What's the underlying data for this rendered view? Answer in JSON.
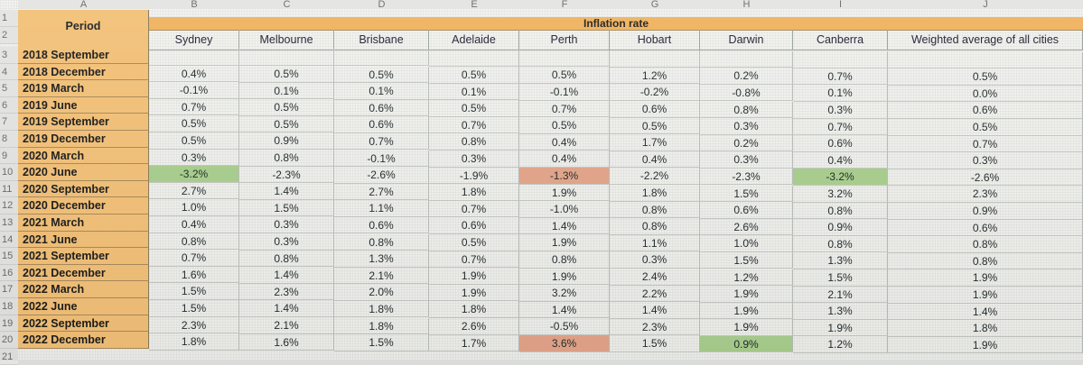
{
  "columns": [
    "A",
    "B",
    "C",
    "D",
    "E",
    "F",
    "G",
    "H",
    "I",
    "J"
  ],
  "row_numbers": [
    "1",
    "2",
    "3",
    "4",
    "5",
    "6",
    "7",
    "8",
    "9",
    "10",
    "11",
    "12",
    "13",
    "14",
    "15",
    "16",
    "17",
    "18",
    "19",
    "20",
    "21"
  ],
  "header": {
    "period": "Period",
    "inflation_rate": "Inflation rate",
    "cities": [
      "Sydney",
      "Melbourne",
      "Brisbane",
      "Adelaide",
      "Perth",
      "Hobart",
      "Darwin",
      "Canberra",
      "Weighted average of all cities"
    ]
  },
  "rows": [
    {
      "period": "2018 September",
      "values": [
        "",
        "",
        "",
        "",
        "",
        "",
        "",
        "",
        ""
      ]
    },
    {
      "period": "2018 December",
      "values": [
        "0.4%",
        "0.5%",
        "0.5%",
        "0.5%",
        "0.5%",
        "1.2%",
        "0.2%",
        "0.7%",
        "0.5%"
      ]
    },
    {
      "period": "2019 March",
      "values": [
        "-0.1%",
        "0.1%",
        "0.1%",
        "0.1%",
        "-0.1%",
        "-0.2%",
        "-0.8%",
        "0.1%",
        "0.0%"
      ]
    },
    {
      "period": "2019 June",
      "values": [
        "0.7%",
        "0.5%",
        "0.6%",
        "0.5%",
        "0.7%",
        "0.6%",
        "0.8%",
        "0.3%",
        "0.6%"
      ]
    },
    {
      "period": "2019 September",
      "values": [
        "0.5%",
        "0.5%",
        "0.6%",
        "0.7%",
        "0.5%",
        "0.5%",
        "0.3%",
        "0.7%",
        "0.5%"
      ]
    },
    {
      "period": "2019 December",
      "values": [
        "0.5%",
        "0.9%",
        "0.7%",
        "0.8%",
        "0.4%",
        "1.7%",
        "0.2%",
        "0.6%",
        "0.7%"
      ]
    },
    {
      "period": "2020 March",
      "values": [
        "0.3%",
        "0.8%",
        "-0.1%",
        "0.3%",
        "0.4%",
        "0.4%",
        "0.3%",
        "0.4%",
        "0.3%"
      ]
    },
    {
      "period": "2020 June",
      "values": [
        "-3.2%",
        "-2.3%",
        "-2.6%",
        "-1.9%",
        "-1.3%",
        "-2.2%",
        "-2.3%",
        "-3.2%",
        "-2.6%"
      ]
    },
    {
      "period": "2020 September",
      "values": [
        "2.7%",
        "1.4%",
        "2.7%",
        "1.8%",
        "1.9%",
        "1.8%",
        "1.5%",
        "3.2%",
        "2.3%"
      ]
    },
    {
      "period": "2020 December",
      "values": [
        "1.0%",
        "1.5%",
        "1.1%",
        "0.7%",
        "-1.0%",
        "0.8%",
        "0.6%",
        "0.8%",
        "0.9%"
      ]
    },
    {
      "period": "2021 March",
      "values": [
        "0.4%",
        "0.3%",
        "0.6%",
        "0.6%",
        "1.4%",
        "0.8%",
        "2.6%",
        "0.9%",
        "0.6%"
      ]
    },
    {
      "period": "2021 June",
      "values": [
        "0.8%",
        "0.3%",
        "0.8%",
        "0.5%",
        "1.9%",
        "1.1%",
        "1.0%",
        "0.8%",
        "0.8%"
      ]
    },
    {
      "period": "2021 September",
      "values": [
        "0.7%",
        "0.8%",
        "1.3%",
        "0.7%",
        "0.8%",
        "0.3%",
        "1.5%",
        "1.3%",
        "0.8%"
      ]
    },
    {
      "period": "2021 December",
      "values": [
        "1.6%",
        "1.4%",
        "2.1%",
        "1.9%",
        "1.9%",
        "2.4%",
        "1.2%",
        "1.5%",
        "1.9%"
      ]
    },
    {
      "period": "2022 March",
      "values": [
        "1.5%",
        "2.3%",
        "2.0%",
        "1.9%",
        "3.2%",
        "2.2%",
        "1.9%",
        "2.1%",
        "1.9%"
      ]
    },
    {
      "period": "2022 June",
      "values": [
        "1.5%",
        "1.4%",
        "1.8%",
        "1.8%",
        "1.4%",
        "1.4%",
        "1.9%",
        "1.3%",
        "1.4%"
      ]
    },
    {
      "period": "2022 September",
      "values": [
        "2.3%",
        "2.1%",
        "1.8%",
        "2.6%",
        "-0.5%",
        "2.3%",
        "1.9%",
        "1.9%",
        "1.8%"
      ]
    },
    {
      "period": "2022 December",
      "values": [
        "1.8%",
        "1.6%",
        "1.5%",
        "1.7%",
        "3.6%",
        "1.5%",
        "0.9%",
        "1.2%",
        "1.9%"
      ]
    }
  ],
  "highlights": {
    "green": "#a9cf8e",
    "red": "#e4a58a",
    "header_orange": "#f3c178"
  }
}
